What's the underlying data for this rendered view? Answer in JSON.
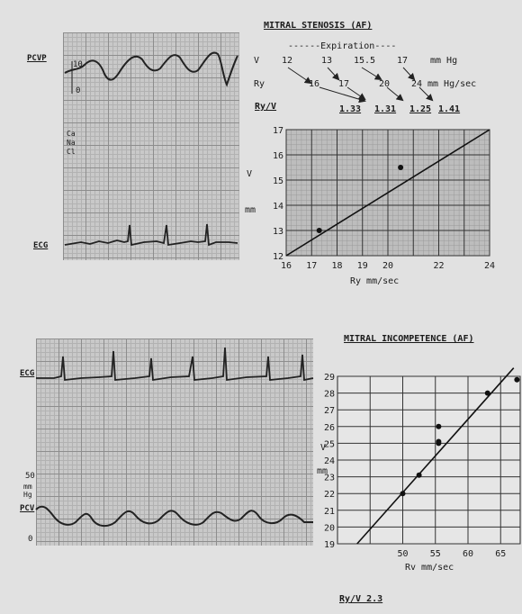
{
  "panel_top": {
    "pcvp_label": "PCVP",
    "ecg_label": "ECG",
    "scale_10": "10",
    "scale_0": "0",
    "annotation_lines": [
      "Ca",
      "Na",
      "Cl"
    ],
    "title": "MITRAL STENOSIS (AF)",
    "expiration_label": "------Expiration----",
    "row_v_label": "V",
    "row_v_values": [
      "12",
      "13",
      "15.5",
      "17"
    ],
    "row_v_unit": "mm Hg",
    "row_ry_label": "Ry",
    "row_ry_values": [
      "16",
      "17",
      "20",
      "24"
    ],
    "row_ry_unit": "mm Hg/sec",
    "row_ratio_label": "Ry/V",
    "row_ratio_values": [
      "1.33",
      "1.31",
      "1.25",
      "1.41"
    ]
  },
  "panel_bottom": {
    "ecg_label": "ECG",
    "pcv_label": "PCV",
    "scale_50": "50",
    "scale_unit": "mm Hg",
    "scale_0": "0",
    "title": "MITRAL INCOMPETENCE (AF)",
    "footer_ratio": "Ry/V 2.3"
  },
  "chart_data": [
    {
      "type": "scatter",
      "title": "",
      "xlabel": "Ry mm/sec",
      "ylabel": "V mm",
      "xlim": [
        16,
        24
      ],
      "ylim": [
        12,
        17
      ],
      "x_ticks": [
        16,
        17,
        18,
        19,
        20,
        22,
        24
      ],
      "y_ticks": [
        12,
        13,
        14,
        15,
        16,
        17
      ],
      "grid": true,
      "series": [
        {
          "points": [
            [
              17.3,
              13.0
            ],
            [
              20.5,
              15.5
            ]
          ]
        }
      ],
      "fit_line": [
        [
          16,
          12
        ],
        [
          24,
          17
        ]
      ]
    },
    {
      "type": "scatter",
      "title": "",
      "xlabel": "Rv mm/sec",
      "ylabel": "V mm",
      "xlim": [
        40,
        68
      ],
      "ylim": [
        19,
        29
      ],
      "x_ticks": [
        50,
        55,
        60,
        65
      ],
      "y_ticks": [
        19,
        20,
        21,
        22,
        23,
        24,
        25,
        26,
        27,
        28,
        29
      ],
      "grid": true,
      "series": [
        {
          "points": [
            [
              50,
              22
            ],
            [
              52.5,
              23.1
            ],
            [
              55.5,
              25
            ],
            [
              55.5,
              25.1
            ],
            [
              55.5,
              26
            ],
            [
              63,
              28
            ],
            [
              67.5,
              28.8
            ]
          ]
        }
      ],
      "fit_line": [
        [
          43,
          19
        ],
        [
          67,
          29.5
        ]
      ]
    }
  ]
}
